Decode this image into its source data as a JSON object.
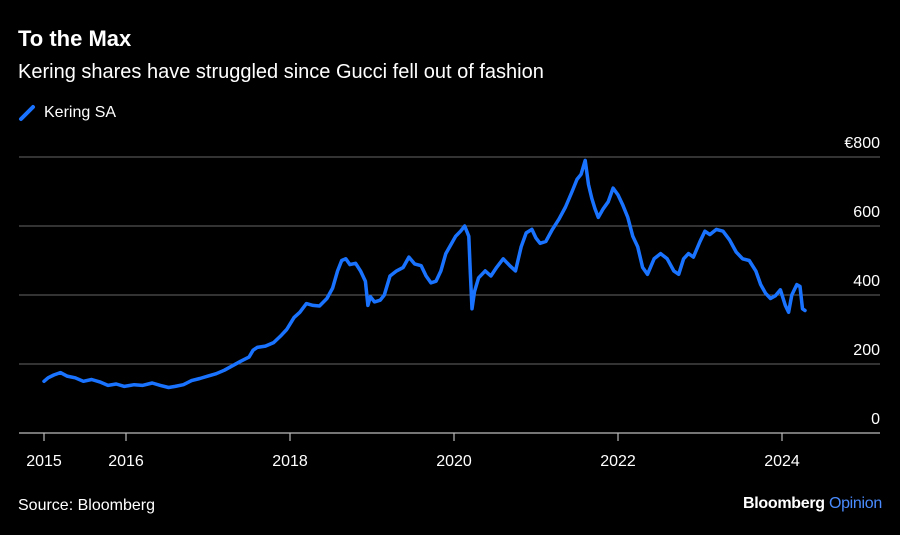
{
  "header": {
    "title": "To the Max",
    "subtitle": "Kering shares have struggled since Gucci fell out of fashion"
  },
  "footer": {
    "source": "Source: Bloomberg",
    "brand_main": "Bloomberg",
    "brand_accent": "Opinion"
  },
  "colors": {
    "background": "#000000",
    "series": "#1a73ff",
    "grid": "#666666",
    "text": "#ffffff"
  },
  "chart_data": {
    "type": "line",
    "title": "To the Max",
    "subtitle": "Kering shares have struggled since Gucci fell out of fashion",
    "xlabel": "",
    "ylabel": "",
    "xlim": [
      2015.0,
      2025.0
    ],
    "ylim": [
      0,
      800
    ],
    "y_ticks": [
      0,
      200,
      400,
      600,
      800
    ],
    "y_tick_labels": [
      "0",
      "200",
      "400",
      "600",
      "€800"
    ],
    "x_ticks": [
      2015,
      2016,
      2018,
      2020,
      2022,
      2024
    ],
    "x_tick_labels": [
      "2015",
      "2016",
      "2018",
      "2020",
      "2022",
      "2024"
    ],
    "grid": true,
    "legend_position": "top-left",
    "series": [
      {
        "name": "Kering SA",
        "color": "#1a73ff",
        "points": [
          [
            2015.0,
            150
          ],
          [
            2015.05,
            160
          ],
          [
            2015.12,
            168
          ],
          [
            2015.2,
            175
          ],
          [
            2015.28,
            165
          ],
          [
            2015.38,
            160
          ],
          [
            2015.48,
            150
          ],
          [
            2015.58,
            155
          ],
          [
            2015.68,
            148
          ],
          [
            2015.78,
            138
          ],
          [
            2015.88,
            142
          ],
          [
            2015.98,
            135
          ],
          [
            2016.1,
            140
          ],
          [
            2016.2,
            138
          ],
          [
            2016.32,
            145
          ],
          [
            2016.42,
            138
          ],
          [
            2016.52,
            132
          ],
          [
            2016.6,
            135
          ],
          [
            2016.7,
            140
          ],
          [
            2016.8,
            152
          ],
          [
            2016.9,
            158
          ],
          [
            2017.0,
            165
          ],
          [
            2017.1,
            172
          ],
          [
            2017.2,
            182
          ],
          [
            2017.3,
            195
          ],
          [
            2017.4,
            208
          ],
          [
            2017.5,
            220
          ],
          [
            2017.55,
            240
          ],
          [
            2017.6,
            248
          ],
          [
            2017.7,
            252
          ],
          [
            2017.8,
            262
          ],
          [
            2017.88,
            280
          ],
          [
            2017.96,
            300
          ],
          [
            2018.05,
            335
          ],
          [
            2018.12,
            350
          ],
          [
            2018.2,
            375
          ],
          [
            2018.28,
            370
          ],
          [
            2018.36,
            368
          ],
          [
            2018.45,
            390
          ],
          [
            2018.52,
            420
          ],
          [
            2018.58,
            470
          ],
          [
            2018.63,
            500
          ],
          [
            2018.68,
            505
          ],
          [
            2018.73,
            488
          ],
          [
            2018.8,
            492
          ],
          [
            2018.86,
            470
          ],
          [
            2018.92,
            440
          ],
          [
            2018.95,
            370
          ],
          [
            2018.98,
            395
          ],
          [
            2019.03,
            380
          ],
          [
            2019.1,
            385
          ],
          [
            2019.15,
            400
          ],
          [
            2019.22,
            455
          ],
          [
            2019.3,
            470
          ],
          [
            2019.38,
            480
          ],
          [
            2019.45,
            510
          ],
          [
            2019.52,
            490
          ],
          [
            2019.6,
            485
          ],
          [
            2019.66,
            455
          ],
          [
            2019.72,
            435
          ],
          [
            2019.78,
            440
          ],
          [
            2019.84,
            470
          ],
          [
            2019.9,
            520
          ],
          [
            2019.96,
            545
          ],
          [
            2020.02,
            570
          ],
          [
            2020.08,
            585
          ],
          [
            2020.13,
            600
          ],
          [
            2020.18,
            570
          ],
          [
            2020.2,
            460
          ],
          [
            2020.22,
            360
          ],
          [
            2020.25,
            410
          ],
          [
            2020.3,
            450
          ],
          [
            2020.38,
            470
          ],
          [
            2020.45,
            455
          ],
          [
            2020.52,
            480
          ],
          [
            2020.6,
            505
          ],
          [
            2020.68,
            485
          ],
          [
            2020.75,
            470
          ],
          [
            2020.82,
            540
          ],
          [
            2020.88,
            580
          ],
          [
            2020.95,
            590
          ],
          [
            2021.0,
            565
          ],
          [
            2021.05,
            550
          ],
          [
            2021.12,
            555
          ],
          [
            2021.2,
            590
          ],
          [
            2021.28,
            620
          ],
          [
            2021.36,
            655
          ],
          [
            2021.44,
            700
          ],
          [
            2021.5,
            735
          ],
          [
            2021.55,
            750
          ],
          [
            2021.6,
            790
          ],
          [
            2021.64,
            720
          ],
          [
            2021.68,
            680
          ],
          [
            2021.72,
            650
          ],
          [
            2021.76,
            625
          ],
          [
            2021.82,
            650
          ],
          [
            2021.88,
            670
          ],
          [
            2021.94,
            710
          ],
          [
            2022.0,
            690
          ],
          [
            2022.06,
            660
          ],
          [
            2022.12,
            625
          ],
          [
            2022.18,
            570
          ],
          [
            2022.24,
            540
          ],
          [
            2022.3,
            480
          ],
          [
            2022.36,
            460
          ],
          [
            2022.44,
            505
          ],
          [
            2022.52,
            520
          ],
          [
            2022.6,
            505
          ],
          [
            2022.68,
            470
          ],
          [
            2022.74,
            460
          ],
          [
            2022.8,
            505
          ],
          [
            2022.86,
            520
          ],
          [
            2022.92,
            510
          ],
          [
            2023.0,
            555
          ],
          [
            2023.06,
            585
          ],
          [
            2023.12,
            575
          ],
          [
            2023.2,
            590
          ],
          [
            2023.28,
            585
          ],
          [
            2023.36,
            560
          ],
          [
            2023.44,
            525
          ],
          [
            2023.52,
            505
          ],
          [
            2023.6,
            500
          ],
          [
            2023.68,
            470
          ],
          [
            2023.74,
            430
          ],
          [
            2023.8,
            405
          ],
          [
            2023.86,
            390
          ],
          [
            2023.92,
            398
          ],
          [
            2023.98,
            415
          ],
          [
            2024.04,
            370
          ],
          [
            2024.08,
            350
          ],
          [
            2024.12,
            400
          ],
          [
            2024.18,
            430
          ],
          [
            2024.22,
            425
          ],
          [
            2024.25,
            360
          ],
          [
            2024.28,
            355
          ]
        ]
      }
    ]
  }
}
